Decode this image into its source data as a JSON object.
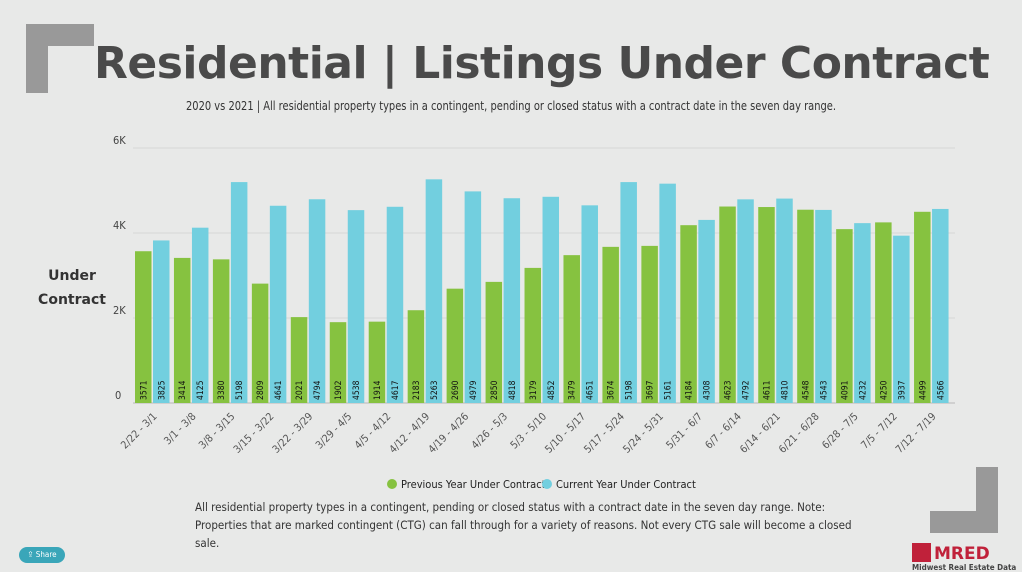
{
  "title": "Residential | Listings Under Contract",
  "subtitle": "2020 vs 2021 | All residential property types in a contingent, pending or closed status with a contract date in the seven day range.",
  "footnote": "All residential property types in a contingent, pending or closed status with a contract date in the seven day range. Note: Properties that are marked contingent (CTG) can fall through for a variety of reasons. Not every CTG sale will become a closed sale.",
  "share_label": "Share",
  "logo": {
    "name": "MRED",
    "tagline": "Midwest Real Estate Data"
  },
  "colors": {
    "previous": "#86c240",
    "current": "#72cfdf",
    "background": "#e8e9e8",
    "logo": "#c0213a"
  },
  "chart_data": {
    "type": "bar",
    "ylabel_line1": "Under",
    "ylabel_line2": "Contract",
    "ylim": [
      0,
      6000
    ],
    "yticks": [
      {
        "value": 0,
        "label": "0"
      },
      {
        "value": 2000,
        "label": "2K"
      },
      {
        "value": 4000,
        "label": "4K"
      },
      {
        "value": 6000,
        "label": "6K"
      }
    ],
    "grid": true,
    "legend_position": "bottom-center",
    "categories": [
      "2/22 - 3/1",
      "3/1 - 3/8",
      "3/8 - 3/15",
      "3/15 - 3/22",
      "3/22 - 3/29",
      "3/29 - 4/5",
      "4/5 - 4/12",
      "4/12 - 4/19",
      "4/19 - 4/26",
      "4/26 - 5/3",
      "5/3 - 5/10",
      "5/10 - 5/17",
      "5/17 - 5/24",
      "5/24 - 5/31",
      "5/31 - 6/7",
      "6/7 - 6/14",
      "6/14 - 6/21",
      "6/21 - 6/28",
      "6/28 - 7/5",
      "7/5 - 7/12",
      "7/12 - 7/19"
    ],
    "series": [
      {
        "name": "Previous Year Under Contract",
        "values": [
          3571,
          3414,
          3380,
          2809,
          2021,
          1902,
          1914,
          2183,
          2690,
          2850,
          3179,
          3479,
          3674,
          3697,
          4184,
          4623,
          4611,
          4548,
          4091,
          4250,
          4499
        ]
      },
      {
        "name": "Current Year Under Contract",
        "values": [
          3825,
          4125,
          5198,
          4641,
          4794,
          4538,
          4617,
          5263,
          4979,
          4818,
          4852,
          4651,
          5198,
          5161,
          4308,
          4792,
          4810,
          4543,
          4232,
          3937,
          4566
        ]
      }
    ]
  }
}
